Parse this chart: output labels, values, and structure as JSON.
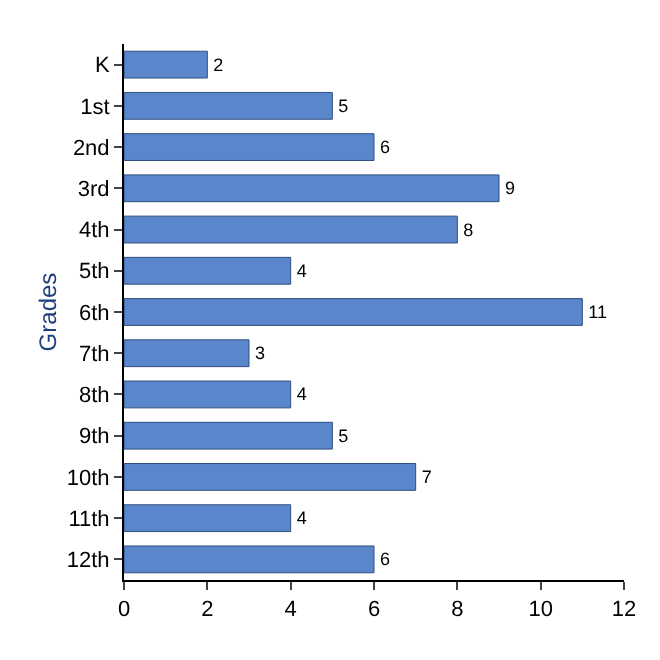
{
  "chart_data": {
    "type": "bar",
    "orientation": "horizontal",
    "ylabel": "Grades",
    "categories": [
      "K",
      "1st",
      "2nd",
      "3rd",
      "4th",
      "5th",
      "6th",
      "7th",
      "8th",
      "9th",
      "10th",
      "11th",
      "12th"
    ],
    "values": [
      2,
      5,
      6,
      9,
      8,
      4,
      11,
      3,
      4,
      5,
      7,
      4,
      6
    ],
    "color": "#5a87cc",
    "xlim": [
      0,
      12
    ],
    "xticks": [
      0,
      2,
      4,
      6,
      8,
      10,
      12
    ],
    "data_labels": true,
    "grid": false,
    "legend": false
  }
}
